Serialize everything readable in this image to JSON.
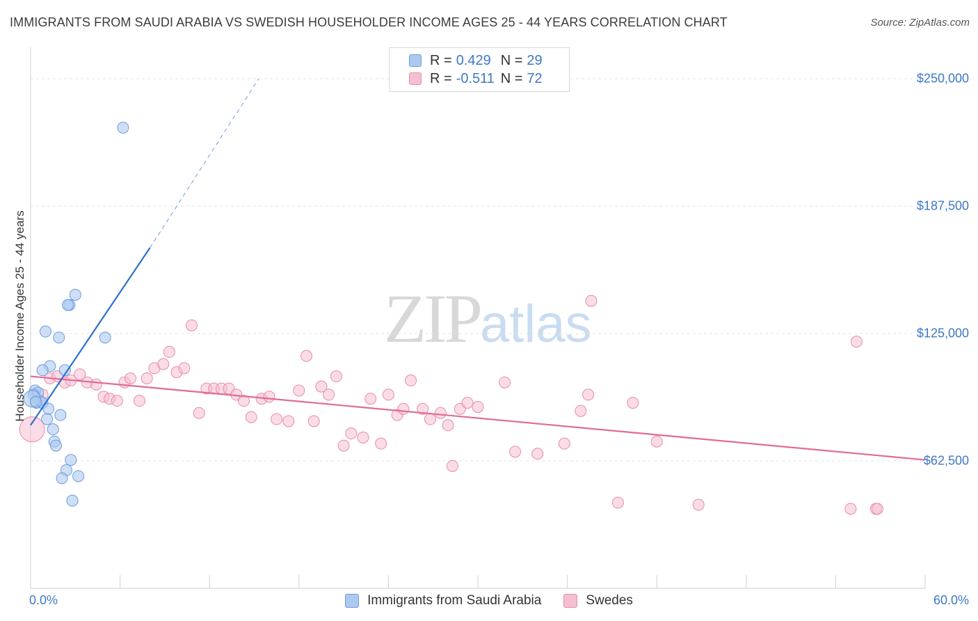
{
  "title": "IMMIGRANTS FROM SAUDI ARABIA VS SWEDISH HOUSEHOLDER INCOME AGES 25 - 44 YEARS CORRELATION CHART",
  "source": "Source: ZipAtlas.com",
  "watermark": {
    "zip": "ZIP",
    "atlas": "atlas"
  },
  "legend_top": [
    {
      "r_label": "R =",
      "r_value": "0.429",
      "n_label": "N =",
      "n_value": "29"
    },
    {
      "r_label": "R =",
      "r_value": "-0.511",
      "n_label": "N =",
      "n_value": "72"
    }
  ],
  "legend_bottom": [
    "Immigrants from Saudi Arabia",
    "Swedes"
  ],
  "colors": {
    "blue_fill": "#adc9ef",
    "blue_stroke": "#6b9be0",
    "blue_line": "#2f6fcc",
    "pink_fill": "#f5bfd1",
    "pink_stroke": "#e88aab",
    "pink_line": "#e06b97",
    "tick_text": "#3f78c8",
    "grid": "#e3e3e3"
  },
  "chart_data": {
    "type": "scatter",
    "title": "IMMIGRANTS FROM SAUDI ARABIA VS SWEDISH HOUSEHOLDER INCOME AGES 25 - 44 YEARS CORRELATION CHART",
    "xlabel": "",
    "ylabel": "Householder Income Ages 25 - 44 years",
    "xlim": [
      0,
      60
    ],
    "ylim": [
      0,
      262000
    ],
    "x_tick_labels": [
      "0.0%",
      "60.0%"
    ],
    "y_ticks": [
      62500,
      125000,
      187500,
      250000
    ],
    "y_tick_labels": [
      "$62,500",
      "$125,000",
      "$187,500",
      "$250,000"
    ],
    "series": [
      {
        "name": "Immigrants from Saudi Arabia",
        "r": 0.429,
        "n": 29,
        "points": [
          [
            6.2,
            226000
          ],
          [
            3.0,
            144000
          ],
          [
            2.6,
            139000
          ],
          [
            2.5,
            139000
          ],
          [
            1.0,
            126000
          ],
          [
            1.9,
            123000
          ],
          [
            5.0,
            123000
          ],
          [
            1.3,
            109000
          ],
          [
            0.8,
            107000
          ],
          [
            2.3,
            107000
          ],
          [
            0.3,
            97000
          ],
          [
            0.5,
            96000
          ],
          [
            0.2,
            95000
          ],
          [
            0.6,
            92000
          ],
          [
            0.4,
            91000
          ],
          [
            0.8,
            91000
          ],
          [
            1.2,
            88000
          ],
          [
            2.0,
            85000
          ],
          [
            1.1,
            83000
          ],
          [
            1.5,
            78000
          ],
          [
            1.6,
            72000
          ],
          [
            1.7,
            70000
          ],
          [
            2.7,
            63000
          ],
          [
            2.4,
            58000
          ],
          [
            3.2,
            55000
          ],
          [
            2.1,
            54000
          ],
          [
            2.8,
            43000
          ],
          [
            0.1,
            93000
          ],
          [
            0.35,
            91500
          ]
        ],
        "trend": {
          "x0": 0.0,
          "y0": 80000,
          "x1": 8.0,
          "y1": 167000,
          "dash_x1": 15.3,
          "dash_y1": 250000
        }
      },
      {
        "name": "Swedes",
        "r": -0.511,
        "n": 72,
        "points": [
          [
            0.1,
            78000
          ],
          [
            0.8,
            95000
          ],
          [
            1.3,
            103000
          ],
          [
            1.8,
            104000
          ],
          [
            2.3,
            101000
          ],
          [
            2.7,
            102000
          ],
          [
            3.3,
            105000
          ],
          [
            3.8,
            101000
          ],
          [
            4.4,
            100000
          ],
          [
            4.9,
            94000
          ],
          [
            5.3,
            93000
          ],
          [
            5.8,
            92000
          ],
          [
            6.3,
            101000
          ],
          [
            6.7,
            103000
          ],
          [
            7.3,
            92000
          ],
          [
            7.8,
            103000
          ],
          [
            8.3,
            108000
          ],
          [
            8.9,
            110000
          ],
          [
            9.3,
            116000
          ],
          [
            9.8,
            106000
          ],
          [
            10.3,
            108000
          ],
          [
            10.8,
            129000
          ],
          [
            11.3,
            86000
          ],
          [
            11.8,
            98000
          ],
          [
            12.3,
            98000
          ],
          [
            12.8,
            98000
          ],
          [
            13.3,
            98000
          ],
          [
            13.8,
            95000
          ],
          [
            14.3,
            92000
          ],
          [
            14.8,
            84000
          ],
          [
            15.5,
            93000
          ],
          [
            16.0,
            94000
          ],
          [
            16.5,
            83000
          ],
          [
            17.3,
            82000
          ],
          [
            18.0,
            97000
          ],
          [
            18.5,
            114000
          ],
          [
            19.0,
            82000
          ],
          [
            19.5,
            99000
          ],
          [
            20.0,
            95000
          ],
          [
            20.5,
            104000
          ],
          [
            21.0,
            70000
          ],
          [
            21.5,
            76000
          ],
          [
            22.3,
            74000
          ],
          [
            22.8,
            93000
          ],
          [
            23.5,
            71000
          ],
          [
            24.0,
            95000
          ],
          [
            24.6,
            85000
          ],
          [
            25.0,
            88000
          ],
          [
            25.5,
            102000
          ],
          [
            26.3,
            88000
          ],
          [
            26.8,
            83000
          ],
          [
            27.5,
            86000
          ],
          [
            28.0,
            80000
          ],
          [
            28.3,
            60000
          ],
          [
            28.8,
            88000
          ],
          [
            29.3,
            91000
          ],
          [
            30.0,
            89000
          ],
          [
            31.8,
            101000
          ],
          [
            32.5,
            67000
          ],
          [
            34.0,
            66000
          ],
          [
            35.8,
            71000
          ],
          [
            36.9,
            87000
          ],
          [
            37.4,
            95000
          ],
          [
            37.6,
            141000
          ],
          [
            39.4,
            42000
          ],
          [
            40.4,
            91000
          ],
          [
            42.0,
            72000
          ],
          [
            44.8,
            41000
          ],
          [
            55.0,
            39000
          ],
          [
            55.4,
            121000
          ],
          [
            56.7,
            39000
          ],
          [
            56.8,
            39000
          ]
        ],
        "trend": {
          "x0": 0.0,
          "y0": 104000,
          "x1": 60.0,
          "y1": 63000
        }
      }
    ]
  }
}
